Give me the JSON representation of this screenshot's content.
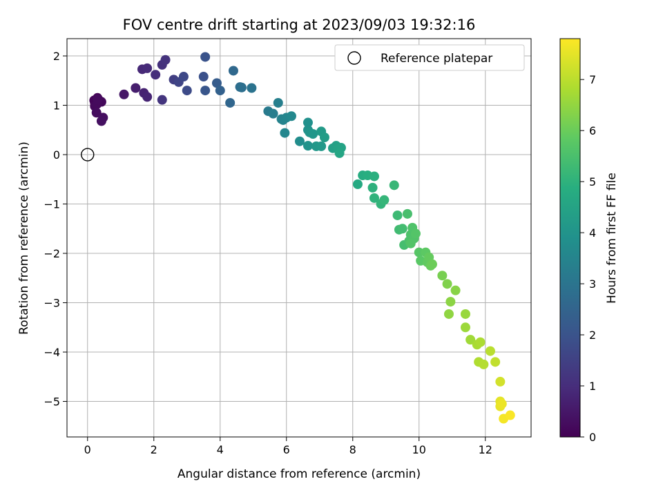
{
  "chart_data": {
    "type": "scatter",
    "title": "FOV centre drift starting at 2023/09/03 19:32:16",
    "xlabel": "Angular distance from reference (arcmin)",
    "ylabel": "Rotation from reference (arcmin)",
    "xlim": [
      -0.62,
      13.38
    ],
    "ylim": [
      -5.72,
      2.35
    ],
    "x_ticks": [
      0,
      2,
      4,
      6,
      8,
      10,
      12
    ],
    "y_ticks": [
      -5,
      -4,
      -3,
      -2,
      -1,
      0,
      1,
      2
    ],
    "grid": true,
    "legend": {
      "position": "top-right",
      "entries": [
        "Reference platepar"
      ]
    },
    "colormap": "viridis",
    "colorbar": {
      "label": "Hours from first FF file",
      "range": [
        0,
        7.8
      ],
      "ticks": [
        0,
        1,
        2,
        3,
        4,
        5,
        6,
        7
      ]
    },
    "reference_point": {
      "x": 0,
      "y": 0,
      "label": "Reference platepar"
    },
    "points": [
      {
        "x": 0.22,
        "y": 1.05,
        "t": 0.05
      },
      {
        "x": 0.3,
        "y": 1.15,
        "t": 0.08
      },
      {
        "x": 0.2,
        "y": 1.1,
        "t": 0.1
      },
      {
        "x": 0.35,
        "y": 1.1,
        "t": 0.12
      },
      {
        "x": 0.42,
        "y": 1.07,
        "t": 0.15
      },
      {
        "x": 0.22,
        "y": 0.98,
        "t": 0.18
      },
      {
        "x": 0.28,
        "y": 1.02,
        "t": 0.2
      },
      {
        "x": 0.3,
        "y": 1.12,
        "t": 0.22
      },
      {
        "x": 0.27,
        "y": 0.85,
        "t": 0.25
      },
      {
        "x": 0.47,
        "y": 0.75,
        "t": 0.3
      },
      {
        "x": 0.42,
        "y": 0.68,
        "t": 0.33
      },
      {
        "x": 1.1,
        "y": 1.22,
        "t": 0.5
      },
      {
        "x": 1.45,
        "y": 1.35,
        "t": 0.65
      },
      {
        "x": 1.7,
        "y": 1.25,
        "t": 0.75
      },
      {
        "x": 1.8,
        "y": 1.17,
        "t": 0.8
      },
      {
        "x": 1.65,
        "y": 1.73,
        "t": 0.9
      },
      {
        "x": 1.8,
        "y": 1.75,
        "t": 0.95
      },
      {
        "x": 2.05,
        "y": 1.62,
        "t": 1.05
      },
      {
        "x": 2.25,
        "y": 1.82,
        "t": 1.1
      },
      {
        "x": 2.35,
        "y": 1.92,
        "t": 1.15
      },
      {
        "x": 2.25,
        "y": 1.11,
        "t": 1.2
      },
      {
        "x": 2.6,
        "y": 1.52,
        "t": 1.45
      },
      {
        "x": 2.75,
        "y": 1.47,
        "t": 1.6
      },
      {
        "x": 2.9,
        "y": 1.58,
        "t": 1.7
      },
      {
        "x": 3.0,
        "y": 1.3,
        "t": 1.8
      },
      {
        "x": 3.5,
        "y": 1.58,
        "t": 1.95
      },
      {
        "x": 3.55,
        "y": 1.98,
        "t": 2.0
      },
      {
        "x": 3.55,
        "y": 1.3,
        "t": 2.1
      },
      {
        "x": 3.9,
        "y": 1.45,
        "t": 2.3
      },
      {
        "x": 4.0,
        "y": 1.3,
        "t": 2.45
      },
      {
        "x": 4.3,
        "y": 1.05,
        "t": 2.6
      },
      {
        "x": 4.4,
        "y": 1.7,
        "t": 2.65
      },
      {
        "x": 4.6,
        "y": 1.37,
        "t": 2.8
      },
      {
        "x": 4.65,
        "y": 1.36,
        "t": 2.85
      },
      {
        "x": 4.95,
        "y": 1.35,
        "t": 3.0
      },
      {
        "x": 5.45,
        "y": 0.88,
        "t": 3.2
      },
      {
        "x": 5.6,
        "y": 0.83,
        "t": 3.3
      },
      {
        "x": 5.75,
        "y": 1.05,
        "t": 3.35
      },
      {
        "x": 5.85,
        "y": 0.72,
        "t": 3.45
      },
      {
        "x": 5.9,
        "y": 0.7,
        "t": 3.5
      },
      {
        "x": 6.0,
        "y": 0.75,
        "t": 3.55
      },
      {
        "x": 5.95,
        "y": 0.44,
        "t": 3.6
      },
      {
        "x": 6.15,
        "y": 0.78,
        "t": 3.65
      },
      {
        "x": 6.4,
        "y": 0.27,
        "t": 3.8
      },
      {
        "x": 6.65,
        "y": 0.65,
        "t": 3.9
      },
      {
        "x": 6.65,
        "y": 0.5,
        "t": 3.95
      },
      {
        "x": 6.65,
        "y": 0.18,
        "t": 4.0
      },
      {
        "x": 6.7,
        "y": 0.45,
        "t": 4.05
      },
      {
        "x": 6.8,
        "y": 0.42,
        "t": 4.1
      },
      {
        "x": 6.9,
        "y": 0.17,
        "t": 4.15
      },
      {
        "x": 7.05,
        "y": 0.17,
        "t": 4.2
      },
      {
        "x": 7.05,
        "y": 0.47,
        "t": 4.25
      },
      {
        "x": 7.15,
        "y": 0.35,
        "t": 4.3
      },
      {
        "x": 7.4,
        "y": 0.13,
        "t": 4.4
      },
      {
        "x": 7.5,
        "y": 0.18,
        "t": 4.45
      },
      {
        "x": 7.55,
        "y": 0.12,
        "t": 4.5
      },
      {
        "x": 7.65,
        "y": 0.14,
        "t": 4.55
      },
      {
        "x": 7.6,
        "y": 0.03,
        "t": 4.6
      },
      {
        "x": 8.15,
        "y": -0.6,
        "t": 4.75
      },
      {
        "x": 8.3,
        "y": -0.42,
        "t": 4.85
      },
      {
        "x": 8.45,
        "y": -0.42,
        "t": 4.9
      },
      {
        "x": 8.65,
        "y": -0.44,
        "t": 4.95
      },
      {
        "x": 8.6,
        "y": -0.67,
        "t": 5.0
      },
      {
        "x": 8.65,
        "y": -0.88,
        "t": 5.05
      },
      {
        "x": 8.85,
        "y": -1.0,
        "t": 5.1
      },
      {
        "x": 8.95,
        "y": -0.92,
        "t": 5.15
      },
      {
        "x": 9.25,
        "y": -0.62,
        "t": 5.2
      },
      {
        "x": 9.35,
        "y": -1.23,
        "t": 5.3
      },
      {
        "x": 9.4,
        "y": -1.52,
        "t": 5.35
      },
      {
        "x": 9.5,
        "y": -1.5,
        "t": 5.4
      },
      {
        "x": 9.55,
        "y": -1.83,
        "t": 5.45
      },
      {
        "x": 9.65,
        "y": -1.2,
        "t": 5.5
      },
      {
        "x": 9.7,
        "y": -1.75,
        "t": 5.55
      },
      {
        "x": 9.75,
        "y": -1.62,
        "t": 5.6
      },
      {
        "x": 9.8,
        "y": -1.48,
        "t": 5.62
      },
      {
        "x": 9.85,
        "y": -1.7,
        "t": 5.65
      },
      {
        "x": 9.75,
        "y": -1.8,
        "t": 5.68
      },
      {
        "x": 9.9,
        "y": -1.6,
        "t": 5.7
      },
      {
        "x": 10.0,
        "y": -1.98,
        "t": 5.75
      },
      {
        "x": 10.05,
        "y": -2.15,
        "t": 5.8
      },
      {
        "x": 10.2,
        "y": -1.98,
        "t": 5.85
      },
      {
        "x": 10.25,
        "y": -2.18,
        "t": 5.9
      },
      {
        "x": 10.3,
        "y": -2.08,
        "t": 5.95
      },
      {
        "x": 10.35,
        "y": -2.25,
        "t": 6.0
      },
      {
        "x": 10.4,
        "y": -2.22,
        "t": 6.05
      },
      {
        "x": 10.7,
        "y": -2.45,
        "t": 6.2
      },
      {
        "x": 10.85,
        "y": -2.62,
        "t": 6.3
      },
      {
        "x": 11.1,
        "y": -2.75,
        "t": 6.4
      },
      {
        "x": 10.95,
        "y": -2.98,
        "t": 6.45
      },
      {
        "x": 10.9,
        "y": -3.23,
        "t": 6.5
      },
      {
        "x": 11.4,
        "y": -3.23,
        "t": 6.6
      },
      {
        "x": 11.4,
        "y": -3.5,
        "t": 6.65
      },
      {
        "x": 11.55,
        "y": -3.75,
        "t": 6.7
      },
      {
        "x": 11.75,
        "y": -3.85,
        "t": 6.8
      },
      {
        "x": 11.85,
        "y": -3.8,
        "t": 6.85
      },
      {
        "x": 11.8,
        "y": -4.2,
        "t": 6.9
      },
      {
        "x": 11.95,
        "y": -4.25,
        "t": 6.95
      },
      {
        "x": 12.15,
        "y": -3.98,
        "t": 7.0
      },
      {
        "x": 12.3,
        "y": -4.2,
        "t": 7.1
      },
      {
        "x": 12.45,
        "y": -4.6,
        "t": 7.3
      },
      {
        "x": 12.45,
        "y": -5.0,
        "t": 7.5
      },
      {
        "x": 12.45,
        "y": -5.1,
        "t": 7.55
      },
      {
        "x": 12.5,
        "y": -5.05,
        "t": 7.6
      },
      {
        "x": 12.55,
        "y": -5.35,
        "t": 7.7
      },
      {
        "x": 12.75,
        "y": -5.28,
        "t": 7.75
      }
    ]
  }
}
